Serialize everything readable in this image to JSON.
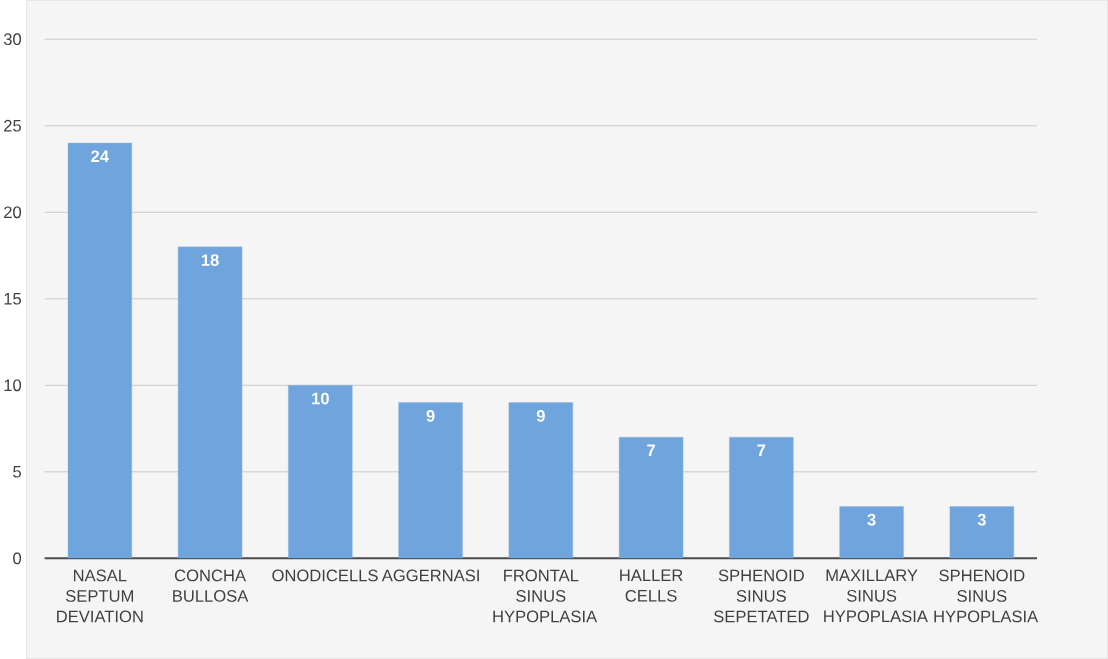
{
  "chart_data": {
    "type": "bar",
    "categories": [
      "NASAL SEPTUM DEVIATION",
      "CONCHA BULLOSA",
      "ONODICELLS",
      "AGGERNASI",
      "FRONTAL SINUS HYPOPLASIA",
      "HALLER CELLS",
      "SPHENOID SINUS SEPETATED",
      "MAXILLARY SINUS HYPOPLASIA",
      "SPHENOID SINUS HYPOPLASIA"
    ],
    "values": [
      24,
      18,
      10,
      9,
      9,
      7,
      7,
      3,
      3
    ],
    "color": "#6fa5dc",
    "ylim": [
      0,
      30
    ],
    "yticks": [
      0,
      5,
      10,
      15,
      20,
      25,
      30
    ],
    "grid": "y",
    "data_labels": true
  }
}
